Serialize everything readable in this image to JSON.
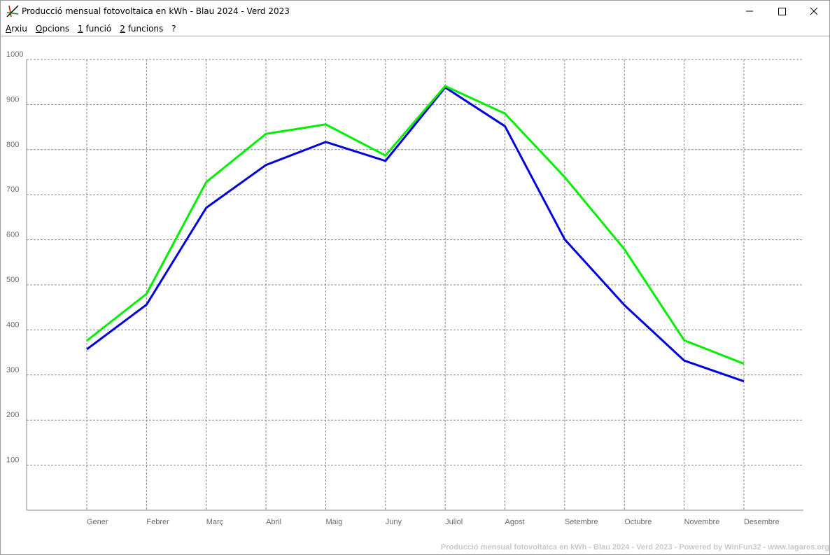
{
  "window": {
    "title": "Producció mensual fotovoltaica en kWh - Blau 2024 - Verd 2023"
  },
  "menu": [
    "Arxiu",
    "Opcions",
    "1 funció",
    "2 funcions",
    "?"
  ],
  "chart_data": {
    "type": "line",
    "categories": [
      "Gener",
      "Febrer",
      "Març",
      "Abril",
      "Maig",
      "Juny",
      "Juliol",
      "Agost",
      "Setembre",
      "Octubre",
      "Novembre",
      "Desembre"
    ],
    "series": [
      {
        "color": "#0000dd",
        "values": [
          357,
          456,
          671,
          766,
          817,
          775,
          938,
          852,
          601,
          455,
          332,
          286
        ]
      },
      {
        "color": "#00ee00",
        "values": [
          376,
          480,
          728,
          835,
          856,
          787,
          941,
          880,
          739,
          579,
          377,
          325
        ]
      }
    ],
    "ylim": [
      0,
      1000
    ],
    "yticks": [
      100,
      200,
      300,
      400,
      500,
      600,
      700,
      800,
      900,
      1000
    ],
    "grid": true,
    "footer": "Producció mensual fotovoltaica en kWh - Blau 2024 - Verd 2023 - Powered by WinFun32 - www.lagares.org"
  }
}
